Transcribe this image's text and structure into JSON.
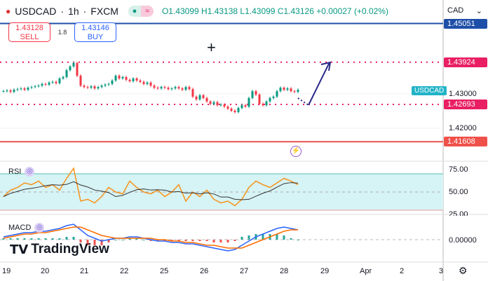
{
  "header": {
    "symbol": "USDCAD",
    "interval": "1h",
    "exchange": "FXCM",
    "separator": " · ",
    "open": "O1.43099",
    "high": "H1.43138",
    "low": "L1.43099",
    "close": "C1.43126",
    "change": "+0.00027 (+0.02%)"
  },
  "trade": {
    "sell_price": "1.43128",
    "sell_label": "SELL",
    "spread": "1.8",
    "buy_price": "1.43146",
    "buy_label": "BUY"
  },
  "currency_selector": "CAD",
  "symbol_tag": "USDCAD",
  "price_labels": [
    {
      "value": "1.45051",
      "color": "#1e4fa8"
    },
    {
      "value": "1.43924",
      "color": "#e91e63"
    },
    {
      "value": "1.42693",
      "color": "#e91e63"
    },
    {
      "value": "1.41608",
      "color": "#f0504a"
    }
  ],
  "price_axis": [
    "1.43000",
    "1.42000"
  ],
  "rsi": {
    "title": "RSI",
    "axis": [
      "75.00",
      "50.00",
      "25.00"
    ]
  },
  "macd": {
    "title": "MACD",
    "axis": [
      "0.00000"
    ]
  },
  "time_axis": [
    "19",
    "20",
    "21",
    "22",
    "25",
    "26",
    "27",
    "28",
    "29",
    "Apr",
    "2",
    "3"
  ],
  "logo": "TradingView",
  "colors": {
    "up": "#089981",
    "down": "#f23645",
    "rsi": "#f7931a",
    "macd": "#2962ff",
    "signal": "#ff6d00",
    "rsi_band": "#d6f3f5"
  },
  "chart_data": {
    "type": "candlestick",
    "title": "USDCAD · 1h · FXCM",
    "ylim": [
      1.414,
      1.452
    ],
    "x_start": "19",
    "x_end": "28",
    "closes": [
      1.4308,
      1.431,
      1.4306,
      1.4312,
      1.4314,
      1.4316,
      1.4312,
      1.4318,
      1.432,
      1.4322,
      1.4324,
      1.4329,
      1.4327,
      1.4333,
      1.4335,
      1.4331,
      1.4345,
      1.4349,
      1.4369,
      1.438,
      1.439,
      1.4353,
      1.4324,
      1.432,
      1.4318,
      1.4322,
      1.4316,
      1.432,
      1.4324,
      1.4327,
      1.4329,
      1.4339,
      1.4353,
      1.4345,
      1.4349,
      1.4341,
      1.4337,
      1.4345,
      1.4339,
      1.4335,
      1.4329,
      1.4333,
      1.4324,
      1.4318,
      1.4316,
      1.432,
      1.4318,
      1.4314,
      1.4316,
      1.432,
      1.4316,
      1.4312,
      1.432,
      1.4314,
      1.4292,
      1.4284,
      1.4296,
      1.4288,
      1.4278,
      1.4271,
      1.4276,
      1.4267,
      1.4269,
      1.4263,
      1.4257,
      1.4251,
      1.4247,
      1.4259,
      1.4267,
      1.4263,
      1.4288,
      1.4308,
      1.4298,
      1.4271,
      1.4267,
      1.4278,
      1.4288,
      1.4292,
      1.4308,
      1.4318,
      1.4312,
      1.4316,
      1.4308,
      1.4306,
      1.4312
    ],
    "horizontal_levels": [
      1.45051,
      1.43924,
      1.42693,
      1.41608
    ],
    "projection_arrow": {
      "from": 1.427,
      "to": 1.4392
    },
    "rsi_values": [
      45,
      52,
      55,
      60,
      58,
      62,
      55,
      58,
      52,
      65,
      76,
      40,
      42,
      38,
      45,
      55,
      50,
      48,
      62,
      55,
      50,
      48,
      52,
      45,
      50,
      58,
      40,
      50,
      45,
      52,
      42,
      38,
      40,
      35,
      42,
      55,
      62,
      58,
      55,
      60,
      65,
      62,
      58
    ],
    "rsi_levels": [
      70,
      50,
      30
    ],
    "macd_values": [
      0.0002,
      0.0003,
      0.0004,
      0.0005,
      0.0005,
      0.0006,
      0.0006,
      0.0007,
      0.0008,
      0.001,
      0.0011,
      0.0007,
      0.0003,
      0.0001,
      -0.0001,
      0,
      0.0001,
      0.0001,
      0.0002,
      0.0002,
      0.0001,
      0,
      -0.0001,
      -0.0001,
      -0.0002,
      -0.0002,
      -0.0003,
      -0.0003,
      -0.0004,
      -0.0005,
      -0.0006,
      -0.0007,
      -0.0008,
      -0.0007,
      -0.0004,
      -0.0001,
      0.0002,
      0.0004,
      0.0006,
      0.0008,
      0.0009,
      0.0008,
      0.0007
    ],
    "signal_values": [
      0.0001,
      0.0002,
      0.0003,
      0.0004,
      0.0004,
      0.0005,
      0.0005,
      0.0006,
      0.0007,
      0.0008,
      0.0009,
      0.0009,
      0.0007,
      0.0005,
      0.0003,
      0.0002,
      0.0001,
      0.0001,
      0.0001,
      0.0001,
      0.0001,
      0.0001,
      0,
      0,
      -0.0001,
      -0.0001,
      -0.0002,
      -0.0002,
      -0.0003,
      -0.0004,
      -0.0004,
      -0.0005,
      -0.0006,
      -0.0006,
      -0.0006,
      -0.0004,
      -0.0002,
      0,
      0.0002,
      0.0004,
      0.0006,
      0.0007,
      0.0007
    ]
  }
}
